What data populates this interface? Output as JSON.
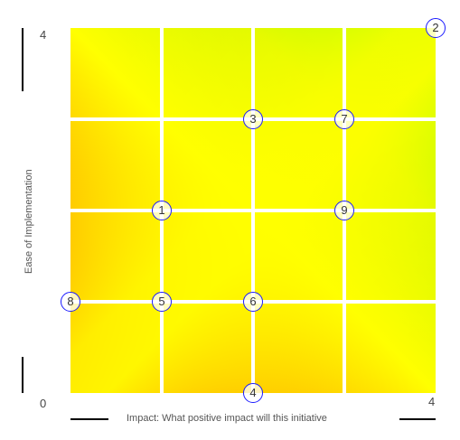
{
  "chart_data": {
    "type": "scatter",
    "title": "",
    "xlabel": "Impact: What positive impact will this initiative",
    "ylabel": "Ease of Implementation",
    "xlim": [
      0,
      4
    ],
    "ylim": [
      0,
      4
    ],
    "x_ticks": [
      "4"
    ],
    "y_ticks": [
      "4"
    ],
    "origin_tick": "0",
    "grid": true,
    "background": "gradient red (bottom-left) to yellow to green (top-right)",
    "colors": {
      "marker_border": "#1a1aff",
      "low": "#ff1a00",
      "mid": "#ffff00",
      "high": "#19ff00"
    },
    "points": [
      {
        "label": "1",
        "x": 1,
        "y": 2
      },
      {
        "label": "2",
        "x": 4,
        "y": 4
      },
      {
        "label": "3",
        "x": 2,
        "y": 3
      },
      {
        "label": "4",
        "x": 2,
        "y": 0
      },
      {
        "label": "5",
        "x": 1,
        "y": 1
      },
      {
        "label": "6",
        "x": 2,
        "y": 1
      },
      {
        "label": "7",
        "x": 3,
        "y": 3
      },
      {
        "label": "8",
        "x": 0,
        "y": 1
      },
      {
        "label": "9",
        "x": 3,
        "y": 2
      }
    ]
  }
}
